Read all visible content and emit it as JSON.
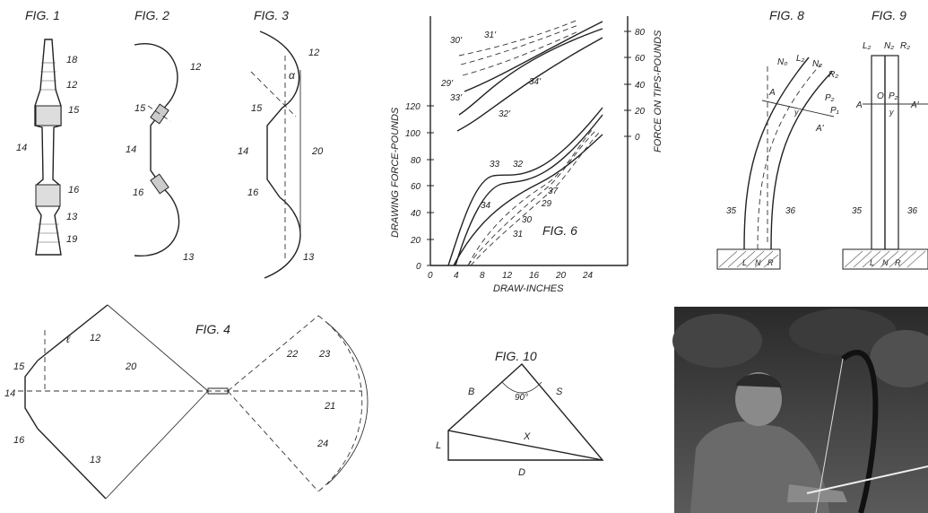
{
  "fig1": {
    "title": "FIG. 1",
    "refs": [
      "18",
      "12",
      "15",
      "14",
      "16",
      "13",
      "19"
    ]
  },
  "fig2": {
    "title": "FIG. 2",
    "refs": [
      "12",
      "15",
      "14",
      "16",
      "13"
    ]
  },
  "fig3": {
    "title": "FIG. 3",
    "refs": [
      "12",
      "15",
      "14",
      "16",
      "13",
      "20"
    ],
    "angle": "α"
  },
  "fig4": {
    "title": "FIG. 4",
    "refs": [
      "12",
      "15",
      "14",
      "16",
      "13",
      "20",
      "22",
      "23",
      "21",
      "24"
    ],
    "dim": "ℓ"
  },
  "fig6": {
    "title": "FIG. 6",
    "left_axis_label": "DRAWING FORCE-POUNDS",
    "right_axis_label": "FORCE ON TIPS-POUNDS",
    "x_axis_label": "DRAW-INCHES",
    "x_ticks": [
      "0",
      "4",
      "8",
      "12",
      "16",
      "20",
      "24"
    ],
    "left_ticks": [
      "0",
      "20",
      "40",
      "60",
      "80",
      "100",
      "120"
    ],
    "right_ticks": [
      "0",
      "20",
      "40",
      "60",
      "80"
    ],
    "curve_labels_lower": [
      "33",
      "32",
      "37",
      "29",
      "30",
      "31",
      "34"
    ],
    "curve_labels_upper": [
      "31'",
      "30'",
      "29'",
      "33'",
      "34'",
      "32'"
    ]
  },
  "fig8": {
    "title": "FIG. 8",
    "labels": [
      "N₀",
      "L₂",
      "N₂",
      "R₂",
      "P₂",
      "P₁",
      "A",
      "A'",
      "y",
      "35",
      "36",
      "L",
      "N",
      "R"
    ]
  },
  "fig9": {
    "title": "FIG. 9",
    "labels": [
      "L₂",
      "N₂",
      "R₂",
      "O",
      "P₂",
      "y",
      "A",
      "A'",
      "35",
      "36",
      "L",
      "N",
      "R"
    ]
  },
  "fig10": {
    "title": "FIG. 10",
    "labels": [
      "B",
      "S",
      "90°",
      "X",
      "L",
      "D"
    ]
  },
  "colors": {
    "ink": "#222222",
    "paper": "#ffffff"
  }
}
